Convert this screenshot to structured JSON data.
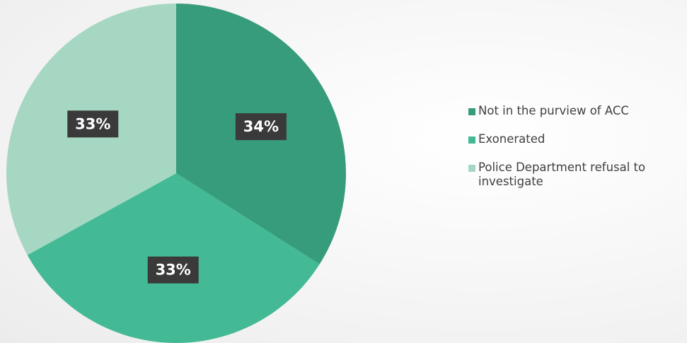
{
  "chart_data": {
    "type": "pie",
    "title": "",
    "categories": [
      "Not in the purview of ACC",
      "Exonerated",
      "Police Department refusal to investigate"
    ],
    "values": [
      34,
      33,
      33
    ],
    "data_labels": [
      "34%",
      "33%",
      "33%"
    ],
    "colors": [
      "#379c7c",
      "#43ba95",
      "#a6d7c3"
    ],
    "legend": "right",
    "start_angle": "12 o'clock",
    "direction": "clockwise"
  }
}
